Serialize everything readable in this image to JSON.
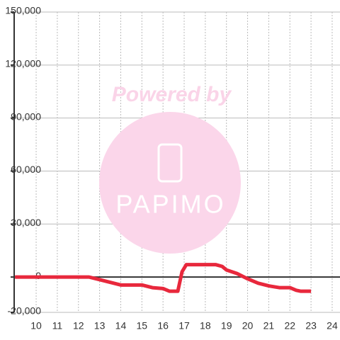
{
  "chart_data": {
    "type": "line",
    "watermark": {
      "text": "Powered by",
      "logo": "PAPIMO"
    },
    "x": [
      9,
      12.5,
      13,
      13.5,
      14,
      14.5,
      15,
      15.5,
      16,
      16.3,
      16.7,
      16.9,
      17.1,
      18.5,
      18.8,
      19,
      19.5,
      20,
      20.5,
      21,
      21.5,
      22,
      22.3,
      22.5,
      23
    ],
    "series": [
      {
        "color": "#e8283c",
        "values": [
          0,
          0,
          -1500,
          -3000,
          -4500,
          -4500,
          -4500,
          -6000,
          -6500,
          -8000,
          -8000,
          3000,
          7000,
          7000,
          6000,
          4000,
          2000,
          -1000,
          -3500,
          -5000,
          -6000,
          -6000,
          -7500,
          -8000,
          -8000
        ]
      }
    ],
    "xlim": [
      8.96,
      24.37
    ],
    "xticks": [
      10,
      11,
      12,
      13,
      14,
      15,
      16,
      17,
      18,
      19,
      20,
      21,
      22,
      23,
      24
    ],
    "ylim": [
      -20000,
      150000
    ],
    "yticks": [
      {
        "value": -20000,
        "label": "-20,000"
      },
      0,
      {
        "value": 30000,
        "label": "30,000"
      },
      {
        "value": 60000,
        "label": "60,000"
      },
      {
        "value": 90000,
        "label": "90,000"
      },
      {
        "value": 120000,
        "label": "120,000"
      },
      {
        "value": 150000,
        "label": "150,000"
      }
    ],
    "grid": true
  }
}
